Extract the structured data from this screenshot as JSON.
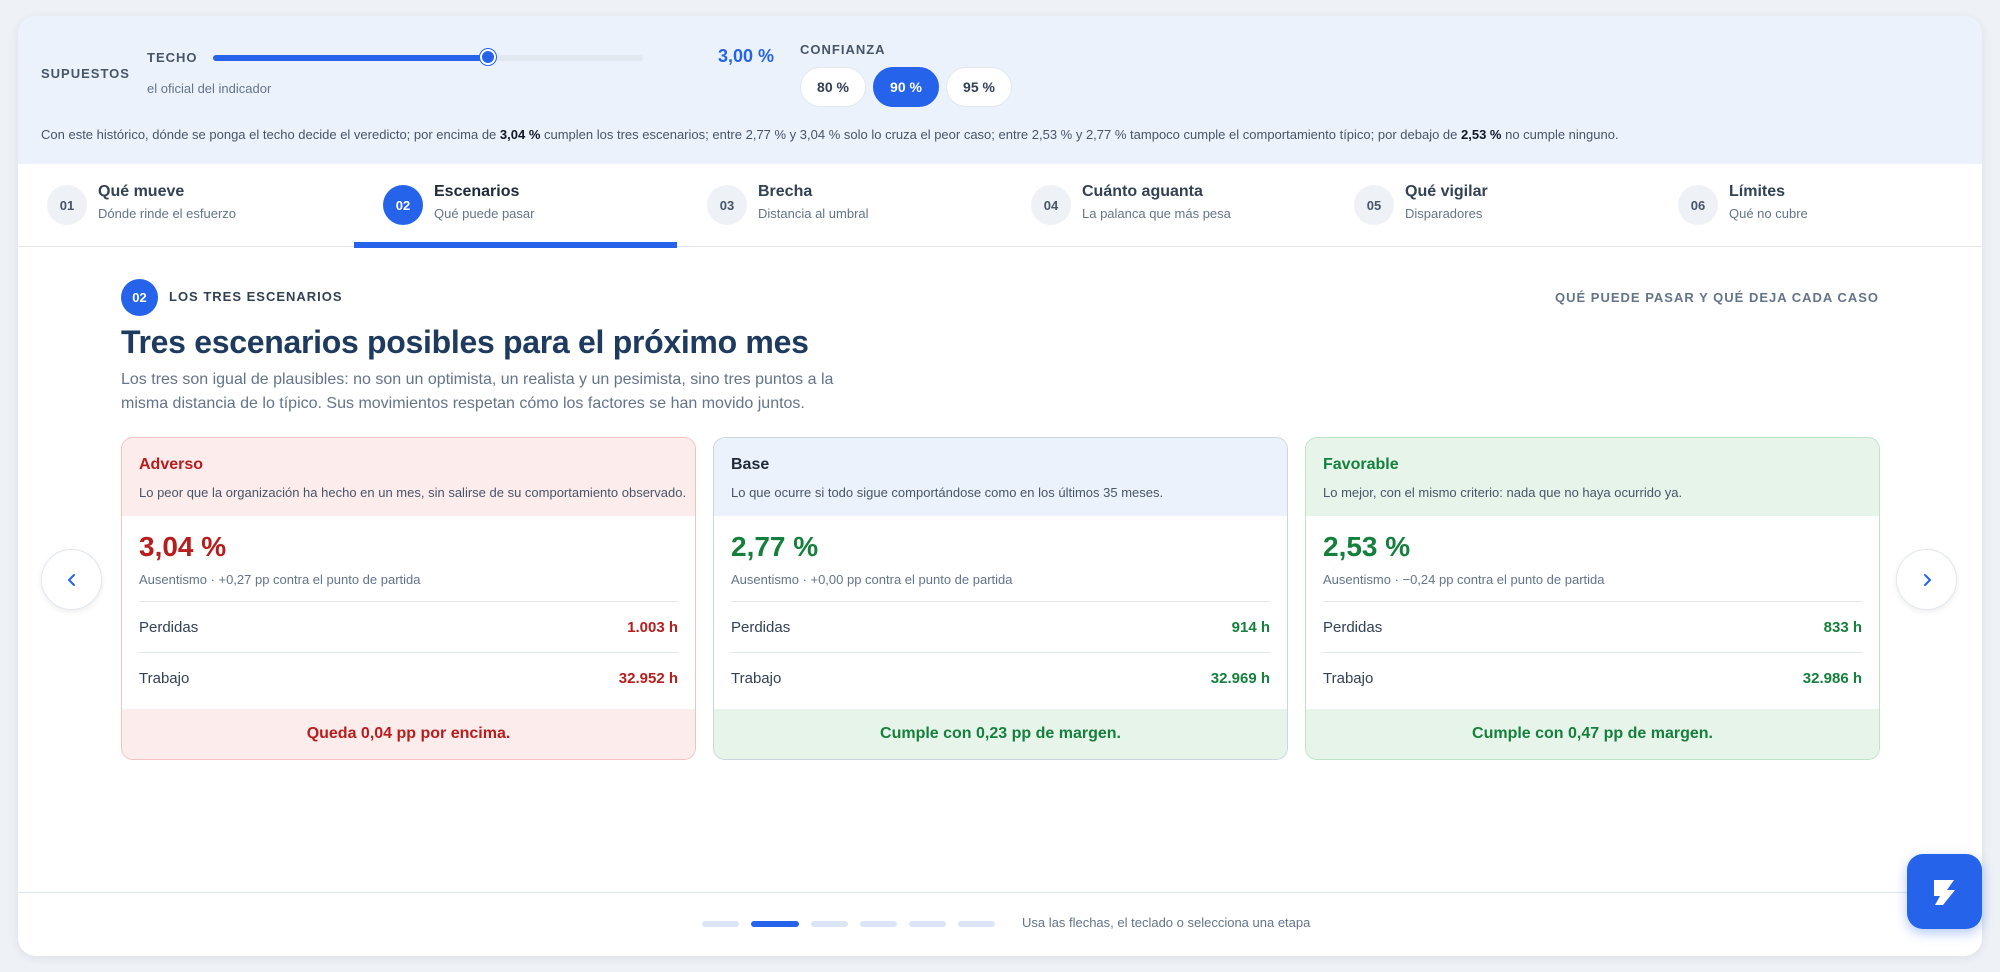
{
  "assumptions": {
    "label": "SUPUESTOS",
    "techo": {
      "label": "TECHO",
      "sub": "el oficial del indicador",
      "value": "3,00 %",
      "level": 0.64
    },
    "confianza": {
      "label": "CONFIANZA",
      "options": [
        {
          "label": "80 %",
          "active": false
        },
        {
          "label": "90 %",
          "active": true
        },
        {
          "label": "95 %",
          "active": false
        }
      ]
    },
    "verdict": {
      "p1": "Con este histórico, dónde se ponga el techo decide el veredicto; por encima de ",
      "b1": "3,04 %",
      "p2": " cumplen los tres escenarios; entre 2,77 % y 3,04 % solo lo cruza el peor caso; entre 2,53 % y 2,77 % tampoco cumple el comportamiento típico; por debajo de ",
      "b2": "2,53 %",
      "p3": " no cumple ninguno."
    }
  },
  "steps": [
    {
      "num": "01",
      "title": "Qué mueve",
      "sub": "Dónde rinde el esfuerzo",
      "active": false
    },
    {
      "num": "02",
      "title": "Escenarios",
      "sub": "Qué puede pasar",
      "active": true
    },
    {
      "num": "03",
      "title": "Brecha",
      "sub": "Distancia al umbral",
      "active": false
    },
    {
      "num": "04",
      "title": "Cuánto aguanta",
      "sub": "La palanca que más pesa",
      "active": false
    },
    {
      "num": "05",
      "title": "Qué vigilar",
      "sub": "Disparadores",
      "active": false
    },
    {
      "num": "06",
      "title": "Límites",
      "sub": "Qué no cubre",
      "active": false
    }
  ],
  "section": {
    "num": "02",
    "label": "LOS TRES ESCENARIOS",
    "right_label": "QUÉ PUEDE PASAR Y QUÉ DEJA CADA CASO",
    "title": "Tres escenarios posibles para el próximo mes",
    "desc": "Los tres son igual de plausibles: no son un optimista, un realista y un pesimista, sino tres puntos a la misma distancia de lo típico. Sus movimientos respetan cómo los factores se han movido juntos."
  },
  "scenarios": [
    {
      "name": "Adverso",
      "desc": "Lo peor que la organización ha hecho en un mes, sin salirse de su comportamiento observado.",
      "value": "3,04 %",
      "delta": "Ausentismo · +0,27 pp contra el punto de partida",
      "rows": [
        {
          "k": "Perdidas",
          "v": "1.003 h"
        },
        {
          "k": "Trabajo",
          "v": "32.952 h"
        }
      ],
      "foot": "Queda 0,04 pp por encima."
    },
    {
      "name": "Base",
      "desc": "Lo que ocurre si todo sigue comportándose como en los últimos 35 meses.",
      "value": "2,77 %",
      "delta": "Ausentismo · +0,00 pp contra el punto de partida",
      "rows": [
        {
          "k": "Perdidas",
          "v": "914 h"
        },
        {
          "k": "Trabajo",
          "v": "32.969 h"
        }
      ],
      "foot": "Cumple con 0,23 pp de margen."
    },
    {
      "name": "Favorable",
      "desc": "Lo mejor, con el mismo criterio: nada que no haya ocurrido ya.",
      "value": "2,53 %",
      "delta": "Ausentismo · −0,24 pp contra el punto de partida",
      "rows": [
        {
          "k": "Perdidas",
          "v": "833 h"
        },
        {
          "k": "Trabajo",
          "v": "32.986 h"
        }
      ],
      "foot": "Cumple con 0,47 pp de margen."
    }
  ],
  "nav": {
    "prev_icon": "chevron-left-icon",
    "next_icon": "chevron-right-icon",
    "dots": [
      false,
      true,
      false,
      false,
      false,
      false
    ],
    "hint": "Usa las flechas, el teclado o selecciona una etapa"
  },
  "app_icon": "brand-logo-icon",
  "colors": {
    "accent": "#2563eb",
    "adverse": "#b91c1c",
    "favorable": "#15803d"
  }
}
